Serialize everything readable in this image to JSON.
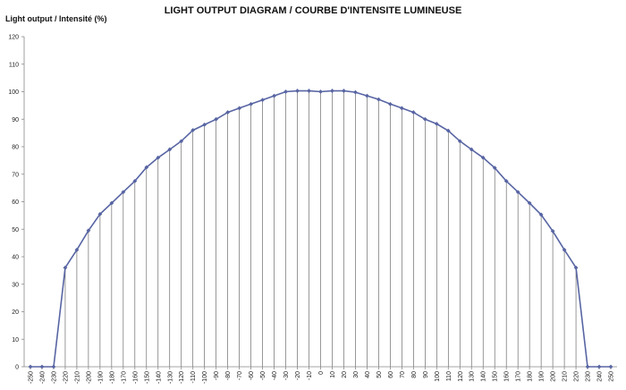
{
  "chart_data": {
    "type": "line",
    "title": "LIGHT OUTPUT DIAGRAM / COURBE D'INTENSITE LUMINEUSE",
    "ylabel": "Light output / Intensité (%)",
    "xlabel": "",
    "ylim": [
      0,
      120
    ],
    "y_ticks": [
      0,
      10,
      20,
      30,
      40,
      50,
      60,
      70,
      80,
      90,
      100,
      110,
      120
    ],
    "x": [
      -250,
      -240,
      -230,
      -220,
      -210,
      -200,
      -190,
      -180,
      -170,
      -160,
      -150,
      -140,
      -130,
      -120,
      -110,
      -100,
      -90,
      -80,
      -70,
      -60,
      -50,
      -40,
      -30,
      -20,
      -10,
      0,
      10,
      20,
      30,
      40,
      50,
      60,
      70,
      80,
      90,
      100,
      110,
      120,
      130,
      140,
      150,
      160,
      170,
      180,
      190,
      200,
      210,
      220,
      230,
      240,
      250
    ],
    "series": [
      {
        "values": [
          0,
          0,
          0,
          36,
          42.5,
          49.5,
          55.5,
          59.5,
          63.5,
          67.5,
          72.5,
          76,
          79,
          82,
          86,
          88,
          90,
          92.5,
          94,
          95.5,
          97,
          98.5,
          100,
          100.3,
          100.3,
          100,
          100.3,
          100.3,
          99.8,
          98.5,
          97.2,
          95.5,
          94,
          92.5,
          90,
          88.3,
          85.8,
          82,
          79,
          76,
          72.3,
          67.5,
          63.5,
          59.5,
          55.3,
          49.3,
          42.5,
          36,
          0,
          0,
          0
        ],
        "color": "#5865a3"
      }
    ],
    "grid": "vertical drop lines from each point to the x-axis",
    "legend": "none"
  }
}
